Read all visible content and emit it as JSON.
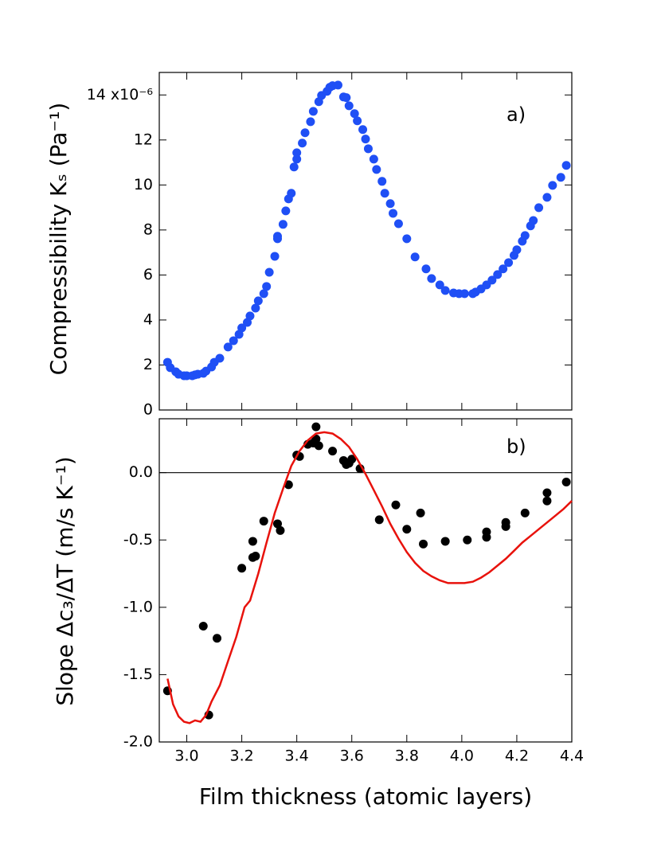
{
  "chart_data": [
    {
      "type": "scatter",
      "ylabel": "Compressibility Kₛ (Pa⁻¹)",
      "annotation": "a)",
      "xlim": [
        2.9,
        4.4
      ],
      "xticks": [
        3,
        3.2,
        3.4,
        3.6,
        3.8,
        4,
        4.2,
        4.4
      ],
      "ylim": [
        0,
        15
      ],
      "yticks": [
        0,
        2,
        4,
        6,
        8,
        10,
        12,
        {
          "value": 14,
          "label": "14 x10⁻⁶"
        }
      ],
      "series": [
        {
          "color": "#1f4ff5",
          "x": [
            2.93,
            2.94,
            2.96,
            2.97,
            2.99,
            3.0,
            3.02,
            3.03,
            3.04,
            3.06,
            3.07,
            3.09,
            3.1,
            3.12,
            3.15,
            3.17,
            3.19,
            3.2,
            3.22,
            3.23,
            3.25,
            3.26,
            3.28,
            3.29,
            3.3,
            3.32,
            3.33,
            3.33,
            3.35,
            3.36,
            3.37,
            3.38,
            3.39,
            3.4,
            3.4,
            3.42,
            3.43,
            3.45,
            3.46,
            3.48,
            3.49,
            3.51,
            3.52,
            3.53,
            3.55,
            3.57,
            3.58,
            3.59,
            3.61,
            3.62,
            3.64,
            3.65,
            3.66,
            3.68,
            3.69,
            3.71,
            3.72,
            3.74,
            3.75,
            3.77,
            3.8,
            3.83,
            3.87,
            3.89,
            3.92,
            3.94,
            3.97,
            3.99,
            4.01,
            4.04,
            4.05,
            4.07,
            4.09,
            4.11,
            4.13,
            4.15,
            4.17,
            4.19,
            4.2,
            4.22,
            4.23,
            4.25,
            4.26,
            4.28,
            4.31,
            4.33,
            4.36,
            4.38
          ],
          "values": [
            2.12,
            1.88,
            1.7,
            1.59,
            1.52,
            1.52,
            1.52,
            1.56,
            1.59,
            1.63,
            1.73,
            1.91,
            2.12,
            2.3,
            2.8,
            3.08,
            3.36,
            3.65,
            3.89,
            4.18,
            4.53,
            4.85,
            5.17,
            5.49,
            6.12,
            6.83,
            7.61,
            7.72,
            8.25,
            8.85,
            9.38,
            9.63,
            10.8,
            11.15,
            11.43,
            11.86,
            12.32,
            12.81,
            13.27,
            13.7,
            13.98,
            14.16,
            14.34,
            14.41,
            14.44,
            13.91,
            13.88,
            13.52,
            13.17,
            12.85,
            12.46,
            12.04,
            11.61,
            11.15,
            10.69,
            10.16,
            9.63,
            9.17,
            8.74,
            8.28,
            7.61,
            6.8,
            6.27,
            5.84,
            5.56,
            5.31,
            5.2,
            5.17,
            5.17,
            5.17,
            5.24,
            5.38,
            5.56,
            5.77,
            6.02,
            6.27,
            6.55,
            6.87,
            7.12,
            7.5,
            7.75,
            8.18,
            8.42,
            8.99,
            9.45,
            9.98,
            10.34,
            10.87
          ]
        }
      ]
    },
    {
      "type": "scatter",
      "ylabel": "Slope Δc₃/ΔT (m/s K⁻¹)",
      "xlabel": "Film thickness (atomic layers)",
      "annotation": "b)",
      "xlim": [
        2.9,
        4.4
      ],
      "xticks": [
        {
          "value": 3,
          "label": "3.0"
        },
        3.2,
        3.4,
        3.6,
        3.8,
        {
          "value": 4,
          "label": "4.0"
        },
        4.2,
        4.4
      ],
      "ylim": [
        -2,
        0.4
      ],
      "yticks": [
        {
          "value": 0,
          "label": "0.0"
        },
        -0.5,
        {
          "value": -1,
          "label": "-1.0"
        },
        -1.5,
        {
          "value": -2,
          "label": "-2.0"
        }
      ],
      "hlines": [
        0
      ],
      "series": [
        {
          "type": "scatter",
          "color": "#000000",
          "x": [
            2.93,
            3.06,
            3.08,
            3.11,
            3.2,
            3.24,
            3.25,
            3.24,
            3.28,
            3.33,
            3.34,
            3.37,
            3.4,
            3.41,
            3.44,
            3.46,
            3.47,
            3.47,
            3.48,
            3.53,
            3.57,
            3.58,
            3.59,
            3.6,
            3.63,
            3.7,
            3.76,
            3.8,
            3.85,
            3.86,
            3.94,
            4.02,
            4.09,
            4.09,
            4.16,
            4.16,
            4.23,
            4.31,
            4.31,
            4.38
          ],
          "values": [
            -1.62,
            -1.14,
            -1.8,
            -1.23,
            -0.71,
            -0.63,
            -0.62,
            -0.51,
            -0.36,
            -0.38,
            -0.43,
            -0.09,
            0.13,
            0.12,
            0.21,
            0.22,
            0.25,
            0.34,
            0.2,
            0.16,
            0.09,
            0.06,
            0.07,
            0.1,
            0.03,
            -0.35,
            -0.24,
            -0.42,
            -0.3,
            -0.53,
            -0.51,
            -0.5,
            -0.44,
            -0.48,
            -0.37,
            -0.4,
            -0.3,
            -0.15,
            -0.21,
            -0.07
          ]
        },
        {
          "type": "line",
          "color": "#e8120c",
          "x": [
            2.93,
            2.95,
            2.97,
            2.99,
            3.01,
            3.03,
            3.05,
            3.07,
            3.09,
            3.12,
            3.15,
            3.18,
            3.21,
            3.23,
            3.26,
            3.29,
            3.32,
            3.35,
            3.38,
            3.41,
            3.44,
            3.47,
            3.5,
            3.53,
            3.56,
            3.59,
            3.62,
            3.65,
            3.68,
            3.71,
            3.74,
            3.77,
            3.8,
            3.83,
            3.86,
            3.89,
            3.92,
            3.95,
            3.98,
            4.01,
            4.04,
            4.07,
            4.1,
            4.13,
            4.16,
            4.19,
            4.22,
            4.25,
            4.28,
            4.31,
            4.34,
            4.37,
            4.4
          ],
          "values": [
            -1.53,
            -1.72,
            -1.81,
            -1.85,
            -1.86,
            -1.84,
            -1.85,
            -1.8,
            -1.7,
            -1.58,
            -1.4,
            -1.22,
            -1.0,
            -0.95,
            -0.75,
            -0.52,
            -0.3,
            -0.12,
            0.05,
            0.16,
            0.24,
            0.29,
            0.3,
            0.29,
            0.25,
            0.19,
            0.1,
            -0.01,
            -0.13,
            -0.25,
            -0.38,
            -0.49,
            -0.59,
            -0.67,
            -0.73,
            -0.77,
            -0.8,
            -0.82,
            -0.82,
            -0.82,
            -0.81,
            -0.78,
            -0.74,
            -0.69,
            -0.64,
            -0.58,
            -0.52,
            -0.47,
            -0.42,
            -0.37,
            -0.32,
            -0.27,
            -0.21
          ]
        }
      ]
    }
  ]
}
